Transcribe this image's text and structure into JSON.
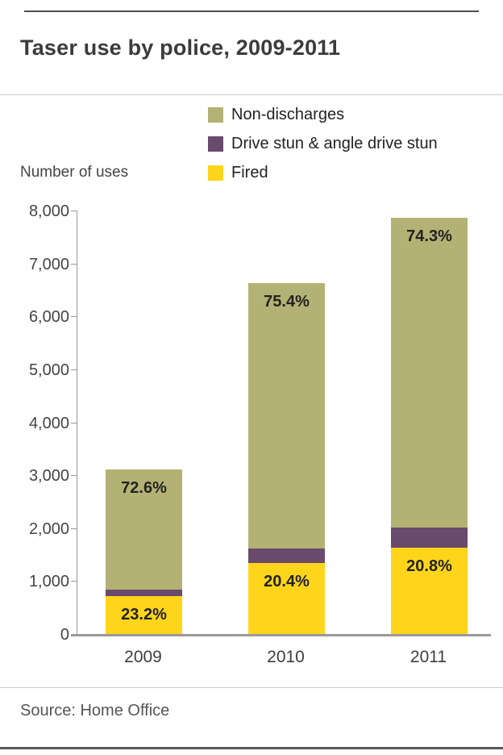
{
  "header": {
    "title": "Taser use by police, 2009-2011"
  },
  "footer": {
    "source": "Source: Home Office"
  },
  "chart_data": {
    "type": "bar",
    "stacked": true,
    "title": "Taser use by police, 2009-2011",
    "axis_label": "Number of uses",
    "categories": [
      "2009",
      "2010",
      "2011"
    ],
    "series": [
      {
        "name": "Fired",
        "color": "#fed51b",
        "values": [
          726,
          1357,
          1639
        ],
        "labels": [
          "23.2%",
          "20.4%",
          "20.8%"
        ],
        "label_pos": "top"
      },
      {
        "name": "Drive stun & angle drive stun",
        "color": "#6a4a6d",
        "values": [
          131,
          278,
          386
        ],
        "labels": [
          "",
          "",
          ""
        ],
        "label_pos": "top"
      },
      {
        "name": "Non-discharges",
        "color": "#b3b274",
        "values": [
          2271,
          5014,
          5852
        ],
        "labels": [
          "72.6%",
          "75.4%",
          "74.3%"
        ],
        "label_pos": "top"
      }
    ],
    "totals": [
      3128,
      6649,
      7877
    ],
    "legend": [
      {
        "label": "Non-discharges",
        "color": "#b3b274"
      },
      {
        "label": "Drive stun & angle drive stun",
        "color": "#6a4a6d"
      },
      {
        "label": "Fired",
        "color": "#fed51b"
      }
    ],
    "legend_position": "top-right",
    "grid": false,
    "ylim": [
      0,
      8000
    ],
    "ytick_step": 1000,
    "yticks": [
      "0",
      "1,000",
      "2,000",
      "3,000",
      "4,000",
      "5,000",
      "6,000",
      "7,000",
      "8,000"
    ]
  }
}
